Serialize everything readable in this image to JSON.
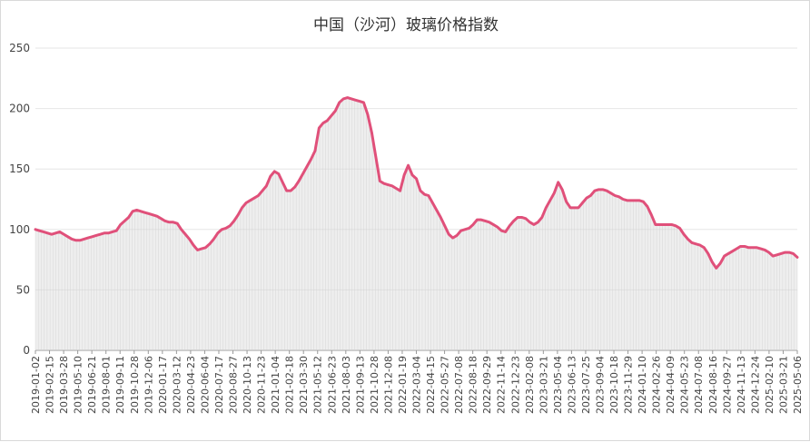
{
  "chart_data": {
    "type": "area",
    "title": "中国（沙河）玻璃价格指数",
    "xlabel": "",
    "ylabel": "",
    "ylim": [
      0,
      250
    ],
    "y_ticks": [
      0,
      50,
      100,
      150,
      200,
      250
    ],
    "grid": true,
    "line_color": "#e0507a",
    "fill_color": "#d9d9d9",
    "x_tick_labels": [
      "2019-01-02",
      "2019-02-15",
      "2019-03-28",
      "2019-05-10",
      "2019-06-21",
      "2019-08-01",
      "2019-09-11",
      "2019-10-28",
      "2019-12-06",
      "2020-01-17",
      "2020-03-12",
      "2020-04-23",
      "2020-06-04",
      "2020-07-17",
      "2020-08-27",
      "2020-10-13",
      "2020-11-23",
      "2021-01-04",
      "2021-02-18",
      "2021-03-30",
      "2021-05-12",
      "2021-06-23",
      "2021-08-03",
      "2021-09-13",
      "2021-10-28",
      "2021-12-08",
      "2022-01-19",
      "2022-03-04",
      "2022-04-15",
      "2022-05-27",
      "2022-07-08",
      "2022-08-18",
      "2022-09-29",
      "2022-11-14",
      "2022-12-23",
      "2023-02-08",
      "2023-03-21",
      "2023-05-04",
      "2023-06-13",
      "2023-07-25",
      "2023-09-04",
      "2023-10-18",
      "2023-11-29",
      "2024-01-10",
      "2024-02-26",
      "2024-04-09",
      "2024-05-23",
      "2024-07-08",
      "2024-08-16",
      "2024-09-27",
      "2024-11-13",
      "2024-12-24",
      "2025-02-10",
      "2025-03-21",
      "2025-05-06"
    ],
    "series": [
      {
        "values": [
          100,
          99,
          98,
          97,
          96,
          97,
          98,
          96,
          94,
          92,
          91,
          91,
          92,
          93,
          94,
          95,
          96,
          97,
          97,
          98,
          99,
          104,
          107,
          110,
          115,
          116,
          115,
          114,
          113,
          112,
          111,
          109,
          107,
          106,
          106,
          105,
          100,
          96,
          92,
          87,
          83,
          84,
          85,
          88,
          92,
          97,
          100,
          101,
          103,
          107,
          112,
          118,
          122,
          124,
          126,
          128,
          132,
          136,
          144,
          148,
          146,
          139,
          132,
          132,
          135,
          140,
          146,
          152,
          158,
          165,
          184,
          188,
          190,
          194,
          198,
          205,
          208,
          209,
          208,
          207,
          206,
          205,
          195,
          180,
          160,
          140,
          138,
          137,
          136,
          134,
          132,
          145,
          153,
          145,
          142,
          132,
          129,
          128,
          122,
          116,
          110,
          103,
          96,
          93,
          95,
          99,
          100,
          101,
          104,
          108,
          108,
          107,
          106,
          104,
          102,
          99,
          98,
          103,
          107,
          110,
          110,
          109,
          106,
          104,
          106,
          110,
          118,
          124,
          130,
          139,
          133,
          123,
          118,
          118,
          118,
          122,
          126,
          128,
          132,
          133,
          133,
          132,
          130,
          128,
          127,
          125,
          124,
          124,
          124,
          124,
          123,
          119,
          112,
          104,
          104,
          104,
          104,
          104,
          103,
          101,
          96,
          92,
          89,
          88,
          87,
          85,
          80,
          73,
          68,
          72,
          78,
          80,
          82,
          84,
          86,
          86,
          85,
          85,
          85,
          84,
          83,
          81,
          78,
          79,
          80,
          81,
          81,
          80,
          77
        ]
      }
    ]
  }
}
